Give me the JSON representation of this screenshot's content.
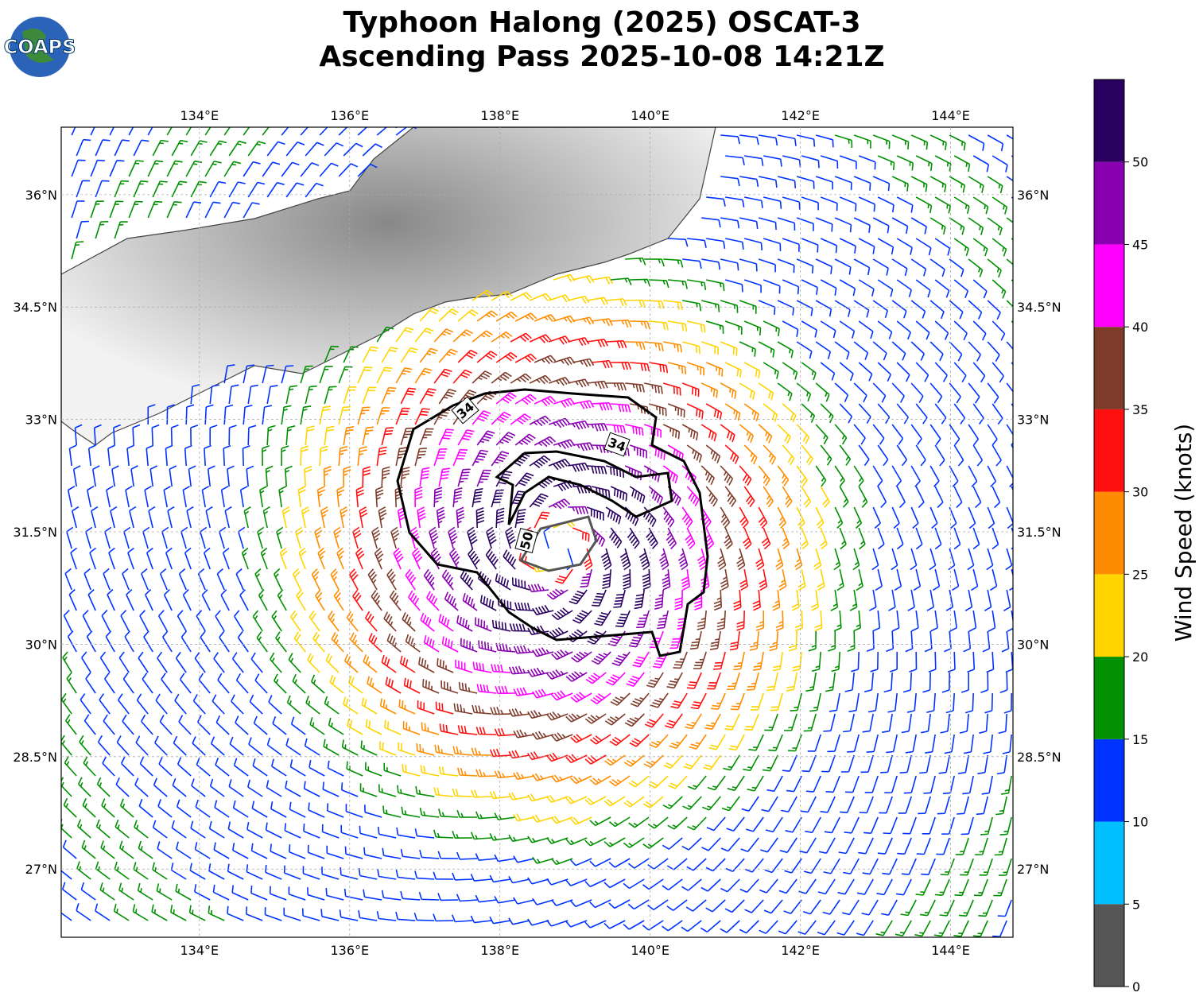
{
  "title": [
    "Typhoon Halong (2025) OSCAT-3",
    "Ascending Pass 2025-10-08 14:21Z"
  ],
  "logo": "COAPS",
  "map": {
    "xlim": [
      132.16,
      144.83
    ],
    "ylim": [
      26.09,
      36.9
    ],
    "xticks": [
      {
        "value": 134,
        "label": "134°E"
      },
      {
        "value": 136,
        "label": "136°E"
      },
      {
        "value": 138,
        "label": "138°E"
      },
      {
        "value": 140,
        "label": "140°E"
      },
      {
        "value": 142,
        "label": "142°E"
      },
      {
        "value": 144,
        "label": "144°E"
      }
    ],
    "yticks": [
      {
        "value": 27,
        "label": "27°N"
      },
      {
        "value": 28.5,
        "label": "28.5°N"
      },
      {
        "value": 30,
        "label": "30°N"
      },
      {
        "value": 31.5,
        "label": "31.5°N"
      },
      {
        "value": 33,
        "label": "33°N"
      },
      {
        "value": 34.5,
        "label": "34.5°N"
      },
      {
        "value": 36,
        "label": "36°N"
      }
    ],
    "grid": true,
    "contour_labels": [
      "34",
      "34",
      "50"
    ]
  },
  "colorbar": {
    "label": "Wind Speed (knots)",
    "lim": [
      0,
      55
    ],
    "bounds": [
      0,
      5,
      10,
      15,
      20,
      25,
      30,
      35,
      40,
      45,
      50,
      55
    ],
    "colors": [
      "#555555",
      "#00bfff",
      "#0033ff",
      "#009000",
      "#ffd400",
      "#ff8c00",
      "#ff1010",
      "#7f3b2a",
      "#ff00ff",
      "#8800b0",
      "#2a0060"
    ],
    "ticks": [
      0,
      5,
      10,
      15,
      20,
      25,
      30,
      35,
      40,
      45,
      50
    ]
  }
}
